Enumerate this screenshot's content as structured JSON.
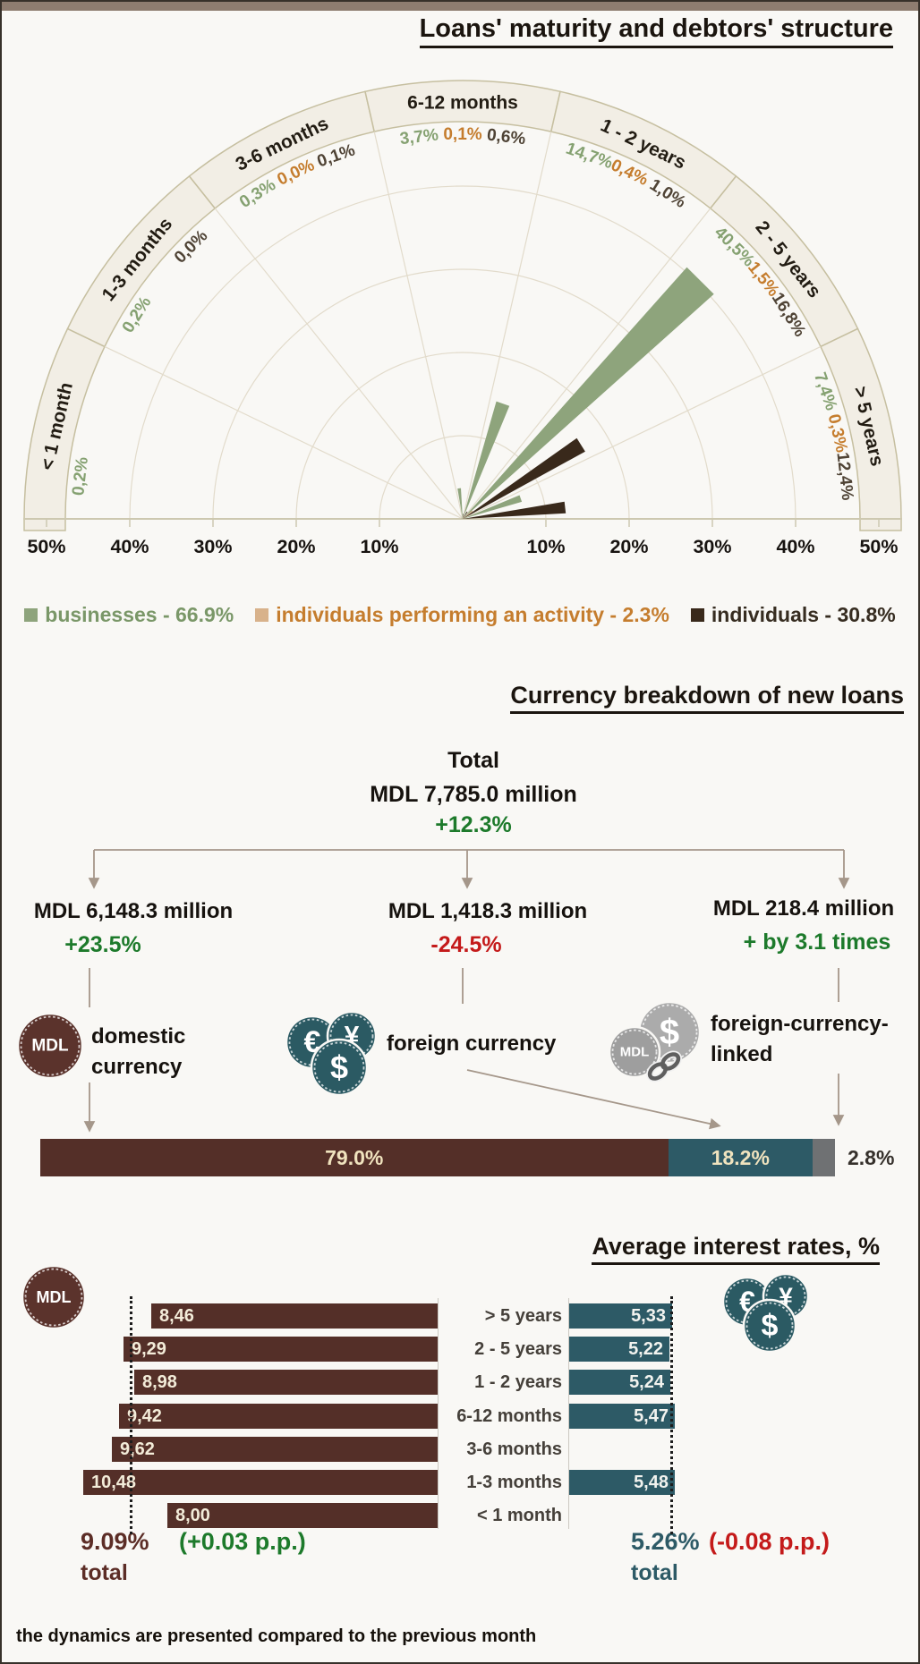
{
  "page": {
    "top_bar_color": "#8e7d70",
    "background": "#f9f8f5",
    "footer_note": "the dynamics are presented compared to the previous month"
  },
  "icons": {
    "mdl_text": "MDL",
    "euro": "€",
    "yen": "¥",
    "dollar": "$"
  },
  "chart_data": [
    {
      "type": "polar-bar",
      "title": "Loans' maturity and debtors' structure",
      "unit": "%",
      "rlim": [
        0,
        50
      ],
      "axis_ticks": [
        "50%",
        "40%",
        "30%",
        "20%",
        "10%",
        "10%",
        "20%",
        "30%",
        "40%",
        "50%"
      ],
      "series": [
        {
          "name": "businesses",
          "color": "#8ea47c",
          "label_color": "#85a171",
          "legend_label": "businesses - 66.9%",
          "legend_text_color": "#7a9768",
          "total_share": "66.9%"
        },
        {
          "name": "individuals performing an activity",
          "color": "#d8b28b",
          "label_color": "#c57d2e",
          "legend_label": "individuals performing an activity - 2.3%",
          "legend_text_color": "#c57d2e",
          "total_share": "2.3%"
        },
        {
          "name": "individuals",
          "color": "#39291b",
          "label_color": "#4f4335",
          "legend_label": "individuals - 30.8%",
          "legend_text_color": "#362c20",
          "total_share": "30.8%"
        }
      ],
      "sectors": [
        {
          "label": "< 1 month",
          "values": [
            {
              "v": 0.2,
              "text": "0,2%"
            },
            null,
            null
          ]
        },
        {
          "label": "1-3 months",
          "values": [
            {
              "v": 0.2,
              "text": "0,2%"
            },
            null,
            {
              "v": 0.0,
              "text": "0,0%"
            }
          ]
        },
        {
          "label": "3-6 months",
          "values": [
            {
              "v": 0.3,
              "text": "0,3%"
            },
            {
              "v": 0.0,
              "text": "0,0%"
            },
            {
              "v": 0.1,
              "text": "0,1%"
            }
          ]
        },
        {
          "label": "6-12 months",
          "values": [
            {
              "v": 3.7,
              "text": "3,7%"
            },
            {
              "v": 0.1,
              "text": "0,1%"
            },
            {
              "v": 0.6,
              "text": "0,6%"
            }
          ]
        },
        {
          "label": "1 - 2 years",
          "values": [
            {
              "v": 14.7,
              "text": "14,7%"
            },
            {
              "v": 0.4,
              "text": "0,4%"
            },
            {
              "v": 1.0,
              "text": "1,0%"
            }
          ]
        },
        {
          "label": "2 - 5 years",
          "values": [
            {
              "v": 40.5,
              "text": "40,5%"
            },
            {
              "v": 1.5,
              "text": "1,5%"
            },
            {
              "v": 16.8,
              "text": "16,8%"
            }
          ]
        },
        {
          "label": "> 5 years",
          "values": [
            {
              "v": 7.4,
              "text": "7,4%"
            },
            {
              "v": 0.3,
              "text": "0,3%"
            },
            {
              "v": 12.4,
              "text": "12,4%"
            }
          ]
        }
      ]
    },
    {
      "type": "stacked-bar-horizontal",
      "title": "Currency breakdown of new loans",
      "segments": [
        {
          "name": "domestic currency",
          "pct": 79.0,
          "label": "79.0%",
          "color": "#542f28",
          "label_color": "#f0e3be"
        },
        {
          "name": "foreign currency",
          "pct": 18.2,
          "label": "18.2%",
          "color": "#2d5a66",
          "label_color": "#f0e3be"
        },
        {
          "name": "foreign-currency-linked",
          "pct": 2.8,
          "label": "",
          "outside_label": "2.8%",
          "color": "#6f7173",
          "outside_label_color": "#35302b"
        }
      ]
    },
    {
      "type": "bar-horizontal-paired",
      "title": "Average interest rates, %",
      "categories": [
        "> 5 years",
        "2 - 5 years",
        "1 - 2 years",
        "6-12 months",
        "3-6 months",
        "1-3 months",
        "< 1 month"
      ],
      "series": [
        {
          "name": "domestic currency (MDL)",
          "color": "#542f28",
          "value_text_color": "#f3ecd9",
          "values": [
            8.46,
            9.29,
            8.98,
            9.42,
            9.62,
            10.48,
            8.0
          ],
          "value_labels": [
            "8,46",
            "9,29",
            "8,98",
            "9,42",
            "9,62",
            "10,48",
            "8,00"
          ],
          "total_value": 9.09,
          "total_label": "9.09%",
          "change": "(+0.03 p.p.)",
          "total_word": "total"
        },
        {
          "name": "foreign currency",
          "color": "#2d5a66",
          "value_text_color": "#f2f3ef",
          "values": [
            5.33,
            5.22,
            5.24,
            5.47,
            null,
            5.48,
            null
          ],
          "value_labels": [
            "5,33",
            "5,22",
            "5,24",
            "5,47",
            "",
            "5,48",
            ""
          ],
          "total_value": 5.26,
          "total_label": "5.26%",
          "change": "(-0.08 p.p.)",
          "total_word": "total"
        }
      ]
    }
  ],
  "currency_tree": {
    "total": {
      "label": "Total",
      "value": "MDL 7,785.0 million",
      "change": "+12.3%"
    },
    "branches": [
      {
        "value": "MDL 6,148.3 million",
        "change": "+23.5%",
        "caption_lines": [
          "domestic",
          "currency"
        ],
        "icon": "mdl-coin"
      },
      {
        "value": "MDL 1,418.3 million",
        "change": "-24.5%",
        "caption_lines": [
          "foreign currency"
        ],
        "icon": "foreign-currency-coins"
      },
      {
        "value": "MDL 218.4 million",
        "change": "+ by 3.1 times",
        "caption_lines": [
          "foreign-currency-",
          "linked"
        ],
        "icon": "foreign-currency-linked-coins"
      }
    ]
  }
}
